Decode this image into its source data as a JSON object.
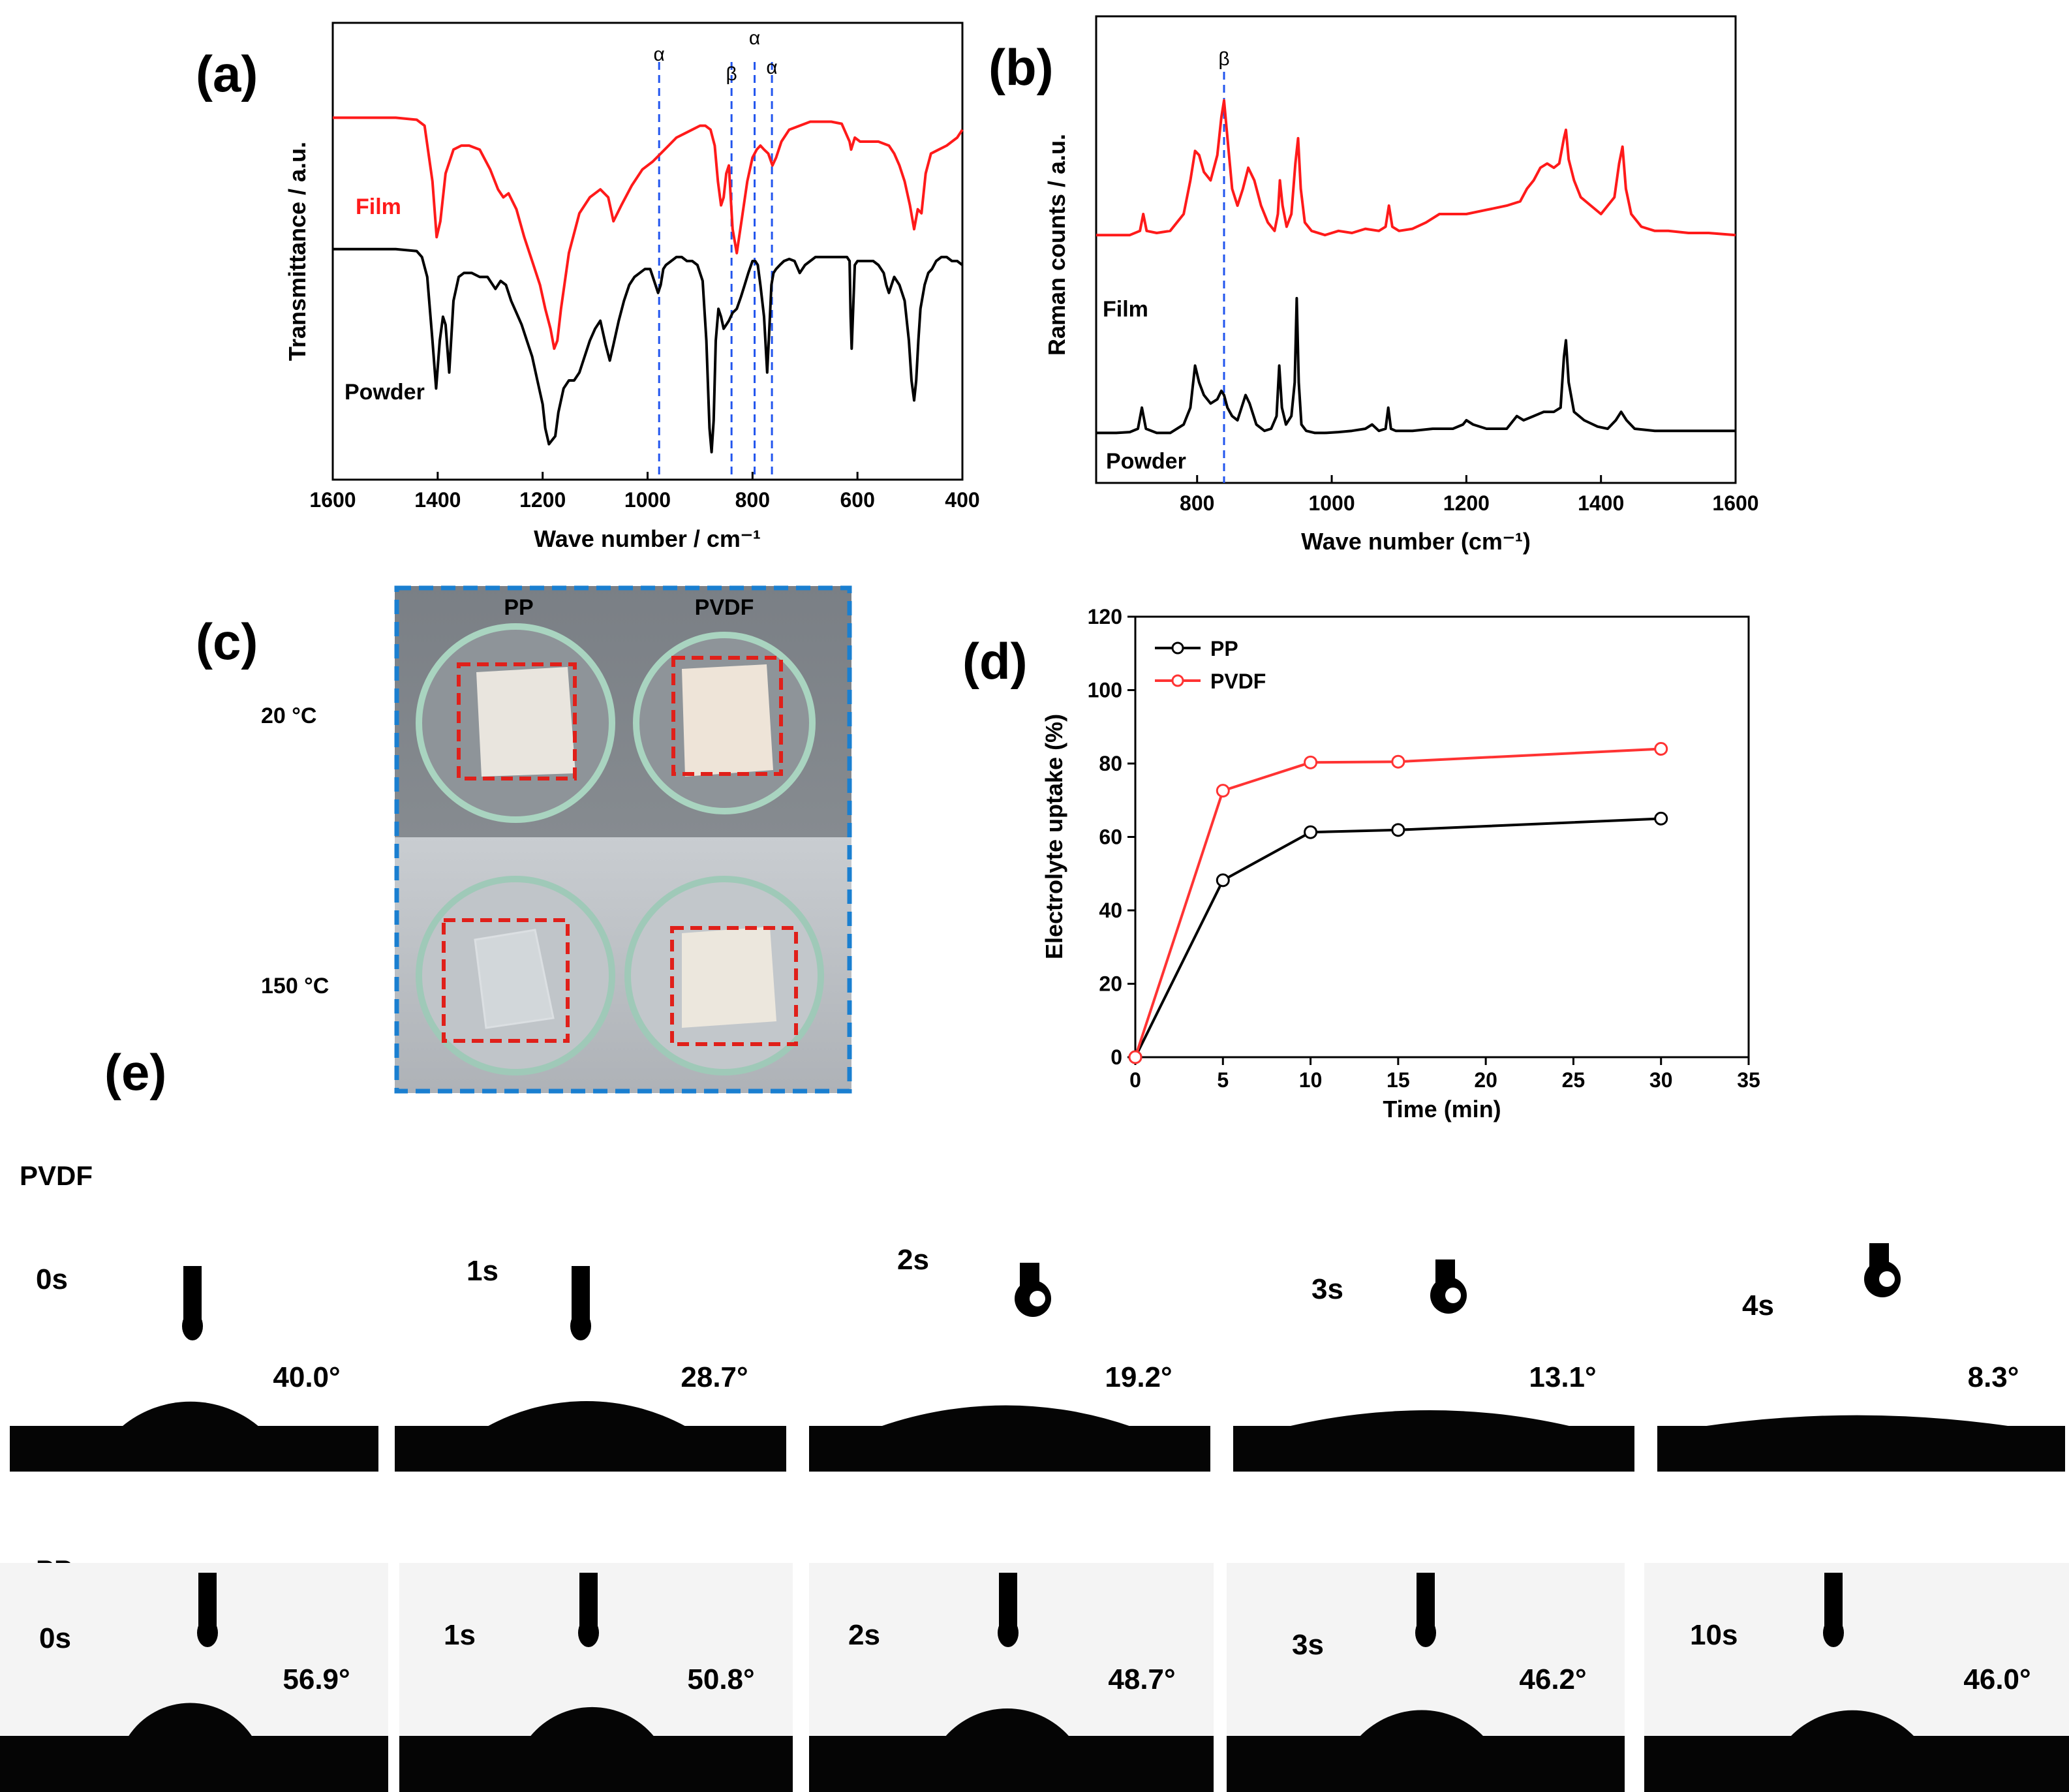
{
  "colors": {
    "film": "#ff1a1a",
    "powder": "#000000",
    "pp": "#000000",
    "pvdf": "#ff3333",
    "marker": "#2255ee",
    "dish_box": "#1a7fd0",
    "sample_box": "#e0201a"
  },
  "panels": {
    "a": {
      "letter": "(a)"
    },
    "b": {
      "letter": "(b)"
    },
    "c": {
      "letter": "(c)"
    },
    "d": {
      "letter": "(d)"
    },
    "e": {
      "letter": "(e)"
    }
  },
  "chart_data": [
    {
      "id": "a",
      "type": "line",
      "title": "",
      "xlabel": "Wave number / cm⁻¹",
      "ylabel": "Transmittance / a.u.",
      "xlim": [
        1600,
        400
      ],
      "x_reversed": true,
      "xticks": [
        "1600",
        "1400",
        "1200",
        "1000",
        "800",
        "600",
        "400"
      ],
      "xtick_values": [
        1600,
        1400,
        1200,
        1000,
        800,
        600,
        400
      ],
      "ylim": [
        0,
        1
      ],
      "series": [
        {
          "name": "Film",
          "color": "#ff1a1a",
          "x": [
            1600,
            1560,
            1520,
            1480,
            1440,
            1425,
            1410,
            1402,
            1395,
            1385,
            1370,
            1355,
            1340,
            1320,
            1300,
            1285,
            1275,
            1265,
            1250,
            1235,
            1220,
            1205,
            1195,
            1185,
            1178,
            1172,
            1165,
            1150,
            1130,
            1110,
            1090,
            1075,
            1065,
            1050,
            1030,
            1010,
            990,
            975,
            960,
            945,
            930,
            915,
            900,
            890,
            880,
            872,
            866,
            860,
            855,
            850,
            845,
            838,
            830,
            820,
            810,
            800,
            792,
            785,
            778,
            770,
            762,
            755,
            745,
            730,
            710,
            690,
            670,
            650,
            630,
            615,
            612,
            605,
            595,
            580,
            560,
            540,
            530,
            520,
            510,
            500,
            492,
            485,
            478,
            470,
            460,
            445,
            430,
            420,
            410,
            400
          ],
          "y": [
            0.86,
            0.86,
            0.86,
            0.86,
            0.855,
            0.84,
            0.7,
            0.56,
            0.6,
            0.72,
            0.78,
            0.79,
            0.79,
            0.78,
            0.73,
            0.68,
            0.66,
            0.67,
            0.63,
            0.56,
            0.5,
            0.44,
            0.38,
            0.33,
            0.28,
            0.3,
            0.38,
            0.52,
            0.62,
            0.66,
            0.68,
            0.66,
            0.6,
            0.64,
            0.69,
            0.73,
            0.75,
            0.77,
            0.79,
            0.81,
            0.82,
            0.83,
            0.84,
            0.84,
            0.83,
            0.79,
            0.7,
            0.64,
            0.66,
            0.72,
            0.74,
            0.58,
            0.52,
            0.61,
            0.7,
            0.76,
            0.78,
            0.79,
            0.78,
            0.77,
            0.74,
            0.76,
            0.8,
            0.83,
            0.84,
            0.85,
            0.85,
            0.85,
            0.845,
            0.8,
            0.78,
            0.81,
            0.8,
            0.8,
            0.8,
            0.79,
            0.77,
            0.74,
            0.7,
            0.64,
            0.58,
            0.63,
            0.62,
            0.72,
            0.77,
            0.78,
            0.79,
            0.8,
            0.81,
            0.83
          ]
        },
        {
          "name": "Powder",
          "color": "#000000",
          "x": [
            1600,
            1560,
            1520,
            1480,
            1440,
            1430,
            1420,
            1410,
            1403,
            1396,
            1390,
            1385,
            1378,
            1370,
            1360,
            1350,
            1335,
            1320,
            1305,
            1290,
            1280,
            1270,
            1260,
            1250,
            1240,
            1230,
            1220,
            1210,
            1200,
            1195,
            1188,
            1182,
            1176,
            1170,
            1160,
            1150,
            1140,
            1130,
            1120,
            1110,
            1100,
            1090,
            1080,
            1072,
            1065,
            1055,
            1045,
            1035,
            1025,
            1015,
            1005,
            995,
            985,
            980,
            975,
            970,
            965,
            955,
            945,
            935,
            925,
            915,
            905,
            895,
            888,
            882,
            878,
            874,
            870,
            865,
            860,
            855,
            850,
            845,
            838,
            830,
            822,
            815,
            808,
            800,
            795,
            790,
            785,
            778,
            772,
            768,
            764,
            760,
            755,
            748,
            740,
            730,
            720,
            710,
            700,
            690,
            680,
            670,
            660,
            650,
            640,
            630,
            620,
            615,
            613,
            611,
            609,
            605,
            600,
            590,
            580,
            570,
            560,
            550,
            545,
            540,
            535,
            530,
            520,
            510,
            502,
            497,
            492,
            488,
            484,
            480,
            472,
            465,
            458,
            450,
            440,
            430,
            420,
            410,
            400
          ],
          "y": [
            0.53,
            0.53,
            0.53,
            0.53,
            0.525,
            0.51,
            0.46,
            0.3,
            0.18,
            0.3,
            0.36,
            0.34,
            0.22,
            0.4,
            0.46,
            0.47,
            0.47,
            0.46,
            0.46,
            0.43,
            0.45,
            0.44,
            0.4,
            0.37,
            0.34,
            0.3,
            0.26,
            0.2,
            0.14,
            0.08,
            0.04,
            0.05,
            0.06,
            0.12,
            0.18,
            0.2,
            0.2,
            0.22,
            0.26,
            0.3,
            0.33,
            0.35,
            0.29,
            0.25,
            0.29,
            0.35,
            0.4,
            0.44,
            0.46,
            0.47,
            0.48,
            0.48,
            0.44,
            0.42,
            0.44,
            0.48,
            0.49,
            0.5,
            0.51,
            0.51,
            0.5,
            0.5,
            0.49,
            0.45,
            0.3,
            0.08,
            0.02,
            0.1,
            0.3,
            0.38,
            0.36,
            0.33,
            0.34,
            0.35,
            0.37,
            0.38,
            0.41,
            0.44,
            0.47,
            0.5,
            0.5,
            0.49,
            0.44,
            0.36,
            0.22,
            0.33,
            0.44,
            0.47,
            0.48,
            0.49,
            0.5,
            0.505,
            0.5,
            0.47,
            0.49,
            0.5,
            0.51,
            0.51,
            0.51,
            0.51,
            0.51,
            0.51,
            0.51,
            0.5,
            0.36,
            0.28,
            0.35,
            0.49,
            0.5,
            0.5,
            0.5,
            0.5,
            0.49,
            0.47,
            0.44,
            0.42,
            0.44,
            0.46,
            0.44,
            0.4,
            0.3,
            0.2,
            0.15,
            0.2,
            0.3,
            0.38,
            0.44,
            0.47,
            0.48,
            0.5,
            0.51,
            0.51,
            0.5,
            0.5,
            0.49
          ]
        }
      ],
      "series_labels": [
        "Film",
        "Powder"
      ],
      "annotations": [
        {
          "text": "α",
          "x": 978
        },
        {
          "text": "β",
          "x": 840
        },
        {
          "text": "α",
          "x": 796
        },
        {
          "text": "α",
          "x": 763
        }
      ]
    },
    {
      "id": "b",
      "type": "line",
      "title": "",
      "xlabel": "Wave number (cm⁻¹)",
      "ylabel": "Raman counts / a.u.",
      "xlim": [
        650,
        1600
      ],
      "xticks": [
        "800",
        "1000",
        "1200",
        "1400",
        "1600"
      ],
      "xtick_values": [
        800,
        1000,
        1200,
        1400,
        1600
      ],
      "ylim": [
        0,
        1
      ],
      "series": [
        {
          "name": "Film",
          "color": "#ff1a1a",
          "x": [
            650,
            680,
            700,
            715,
            720,
            725,
            740,
            760,
            780,
            790,
            797,
            803,
            810,
            820,
            830,
            836,
            840,
            844,
            852,
            860,
            868,
            876,
            885,
            895,
            905,
            915,
            920,
            923,
            927,
            933,
            940,
            946,
            950,
            954,
            960,
            970,
            990,
            1010,
            1030,
            1050,
            1070,
            1080,
            1085,
            1090,
            1100,
            1120,
            1140,
            1160,
            1180,
            1200,
            1230,
            1260,
            1280,
            1290,
            1300,
            1310,
            1320,
            1330,
            1338,
            1345,
            1348,
            1352,
            1360,
            1370,
            1385,
            1400,
            1410,
            1420,
            1427,
            1432,
            1437,
            1445,
            1460,
            1480,
            1500,
            1530,
            1560,
            1600
          ],
          "y": [
            0.55,
            0.55,
            0.55,
            0.56,
            0.6,
            0.56,
            0.555,
            0.56,
            0.6,
            0.68,
            0.75,
            0.74,
            0.7,
            0.68,
            0.74,
            0.83,
            0.87,
            0.8,
            0.66,
            0.62,
            0.66,
            0.71,
            0.68,
            0.62,
            0.58,
            0.56,
            0.6,
            0.68,
            0.62,
            0.57,
            0.6,
            0.72,
            0.78,
            0.66,
            0.58,
            0.56,
            0.55,
            0.56,
            0.555,
            0.565,
            0.56,
            0.57,
            0.62,
            0.57,
            0.56,
            0.565,
            0.58,
            0.6,
            0.6,
            0.6,
            0.61,
            0.62,
            0.63,
            0.66,
            0.68,
            0.71,
            0.72,
            0.71,
            0.72,
            0.78,
            0.8,
            0.73,
            0.68,
            0.64,
            0.62,
            0.6,
            0.62,
            0.64,
            0.72,
            0.76,
            0.66,
            0.6,
            0.57,
            0.56,
            0.56,
            0.555,
            0.555,
            0.55
          ]
        },
        {
          "name": "Powder",
          "color": "#000000",
          "x": [
            650,
            680,
            700,
            712,
            718,
            724,
            740,
            760,
            780,
            790,
            797,
            803,
            810,
            820,
            830,
            836,
            840,
            845,
            852,
            860,
            866,
            872,
            878,
            888,
            900,
            910,
            918,
            922,
            926,
            932,
            940,
            945,
            948,
            951,
            955,
            962,
            975,
            990,
            1010,
            1030,
            1050,
            1060,
            1070,
            1080,
            1084,
            1088,
            1095,
            1120,
            1150,
            1180,
            1195,
            1200,
            1210,
            1230,
            1260,
            1275,
            1285,
            1300,
            1315,
            1330,
            1340,
            1345,
            1348,
            1352,
            1360,
            1375,
            1395,
            1410,
            1422,
            1430,
            1438,
            1450,
            1480,
            1520,
            1560,
            1600
          ],
          "y": [
            0.08,
            0.08,
            0.082,
            0.09,
            0.14,
            0.09,
            0.08,
            0.08,
            0.1,
            0.14,
            0.24,
            0.2,
            0.17,
            0.15,
            0.16,
            0.18,
            0.17,
            0.14,
            0.12,
            0.11,
            0.14,
            0.17,
            0.15,
            0.1,
            0.085,
            0.09,
            0.12,
            0.24,
            0.14,
            0.1,
            0.12,
            0.2,
            0.4,
            0.2,
            0.1,
            0.085,
            0.08,
            0.08,
            0.082,
            0.085,
            0.09,
            0.1,
            0.085,
            0.09,
            0.14,
            0.09,
            0.085,
            0.085,
            0.09,
            0.09,
            0.1,
            0.11,
            0.1,
            0.09,
            0.09,
            0.12,
            0.11,
            0.12,
            0.13,
            0.13,
            0.14,
            0.26,
            0.3,
            0.2,
            0.13,
            0.11,
            0.095,
            0.09,
            0.11,
            0.13,
            0.11,
            0.09,
            0.085,
            0.085,
            0.085,
            0.085
          ]
        }
      ],
      "series_labels": [
        "Film",
        "Powder"
      ],
      "annotations": [
        {
          "text": "β",
          "x": 840
        }
      ]
    },
    {
      "id": "d",
      "type": "line",
      "title": "",
      "xlabel": "Time (min)",
      "ylabel": "Electrolyte uptake (%)",
      "xlim": [
        0,
        35
      ],
      "ylim": [
        0,
        120
      ],
      "xticks": [
        "0",
        "5",
        "10",
        "15",
        "20",
        "25",
        "30",
        "35"
      ],
      "xtick_values": [
        0,
        5,
        10,
        15,
        20,
        25,
        30,
        35
      ],
      "yticks": [
        "0",
        "20",
        "40",
        "60",
        "80",
        "100",
        "120"
      ],
      "ytick_values": [
        0,
        20,
        40,
        60,
        80,
        100,
        120
      ],
      "x": [
        0,
        5,
        10,
        15,
        30
      ],
      "series": [
        {
          "name": "PP",
          "color": "#000000",
          "values": [
            0,
            48.2,
            61.3,
            61.9,
            65.0
          ]
        },
        {
          "name": "PVDF",
          "color": "#ff3333",
          "values": [
            0,
            72.6,
            80.3,
            80.5,
            84.0
          ]
        }
      ],
      "legend": "top-left"
    }
  ],
  "panel_c": {
    "col_labels": [
      "PP",
      "PVDF"
    ],
    "row_labels": [
      "20 °C",
      "150 °C"
    ]
  },
  "panel_e": {
    "rows": [
      {
        "label": "PVDF",
        "frames": [
          {
            "time": "0s",
            "angle": "40.0°",
            "angle_value": 40.0
          },
          {
            "time": "1s",
            "angle": "28.7°",
            "angle_value": 28.7
          },
          {
            "time": "2s",
            "angle": "19.2°",
            "angle_value": 19.2
          },
          {
            "time": "3s",
            "angle": "13.1°",
            "angle_value": 13.1
          },
          {
            "time": "4s",
            "angle": "8.3°",
            "angle_value": 8.3
          }
        ]
      },
      {
        "label": "PP",
        "frames": [
          {
            "time": "0s",
            "angle": "56.9°",
            "angle_value": 56.9
          },
          {
            "time": "1s",
            "angle": "50.8°",
            "angle_value": 50.8
          },
          {
            "time": "2s",
            "angle": "48.7°",
            "angle_value": 48.7
          },
          {
            "time": "3s",
            "angle": "46.2°",
            "angle_value": 46.2
          },
          {
            "time": "10s",
            "angle": "46.0°",
            "angle_value": 46.0
          }
        ]
      }
    ]
  }
}
